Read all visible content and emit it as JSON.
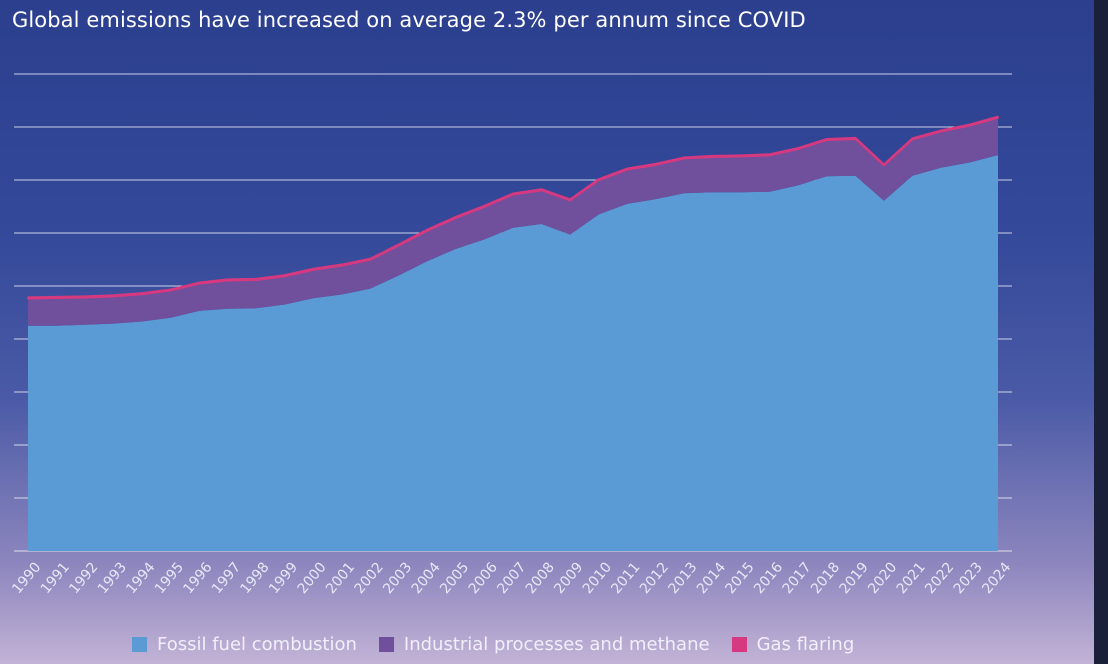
{
  "chart_title": "Global emissions have increased on average 2.3% per annum since COVID",
  "legend": [
    {
      "label": "Fossil fuel combustion",
      "color": "#5b9bd5"
    },
    {
      "label": "Industrial processes and methane",
      "color": "#704f9c"
    },
    {
      "label": "Gas flaring",
      "color": "#d6397f"
    }
  ],
  "chart_data": {
    "type": "area",
    "stacked": true,
    "title": "Global emissions have increased on average 2.3% per annum since COVID",
    "xlabel": "",
    "ylabel": "",
    "x": [
      "1990",
      "1991",
      "1992",
      "1993",
      "1994",
      "1995",
      "1996",
      "1997",
      "1998",
      "1999",
      "2000",
      "2001",
      "2002",
      "2003",
      "2004",
      "2005",
      "2006",
      "2007",
      "2008",
      "2009",
      "2010",
      "2011",
      "2012",
      "2013",
      "2014",
      "2015",
      "2016",
      "2017",
      "2018",
      "2019",
      "2020",
      "2021",
      "2022",
      "2023",
      "2024"
    ],
    "series": [
      {
        "name": "Fossil fuel combustion",
        "color": "#5b9bd5",
        "values": [
          4.25,
          4.25,
          4.27,
          4.29,
          4.33,
          4.4,
          4.53,
          4.57,
          4.58,
          4.65,
          4.77,
          4.84,
          4.95,
          5.2,
          5.47,
          5.7,
          5.88,
          6.1,
          6.17,
          5.97,
          6.35,
          6.55,
          6.64,
          6.75,
          6.77,
          6.77,
          6.78,
          6.9,
          7.07,
          7.08,
          6.61,
          7.08,
          7.23,
          7.33,
          7.47
        ]
      },
      {
        "name": "Industrial processes and methane",
        "color": "#704f9c",
        "values": [
          0.51,
          0.52,
          0.51,
          0.51,
          0.51,
          0.51,
          0.51,
          0.53,
          0.53,
          0.53,
          0.53,
          0.54,
          0.54,
          0.56,
          0.57,
          0.58,
          0.61,
          0.62,
          0.63,
          0.64,
          0.64,
          0.64,
          0.64,
          0.65,
          0.66,
          0.67,
          0.68,
          0.68,
          0.68,
          0.69,
          0.66,
          0.68,
          0.68,
          0.69,
          0.7
        ]
      },
      {
        "name": "Gas flaring",
        "color": "#d6397f",
        "values": [
          0.03,
          0.03,
          0.03,
          0.03,
          0.03,
          0.03,
          0.03,
          0.03,
          0.03,
          0.03,
          0.03,
          0.03,
          0.03,
          0.03,
          0.03,
          0.03,
          0.03,
          0.03,
          0.03,
          0.03,
          0.03,
          0.03,
          0.03,
          0.03,
          0.03,
          0.03,
          0.03,
          0.03,
          0.03,
          0.03,
          0.03,
          0.03,
          0.03,
          0.03,
          0.03
        ]
      }
    ],
    "ylim": [
      0,
      9
    ],
    "grid": true,
    "legend_position": "bottom"
  }
}
